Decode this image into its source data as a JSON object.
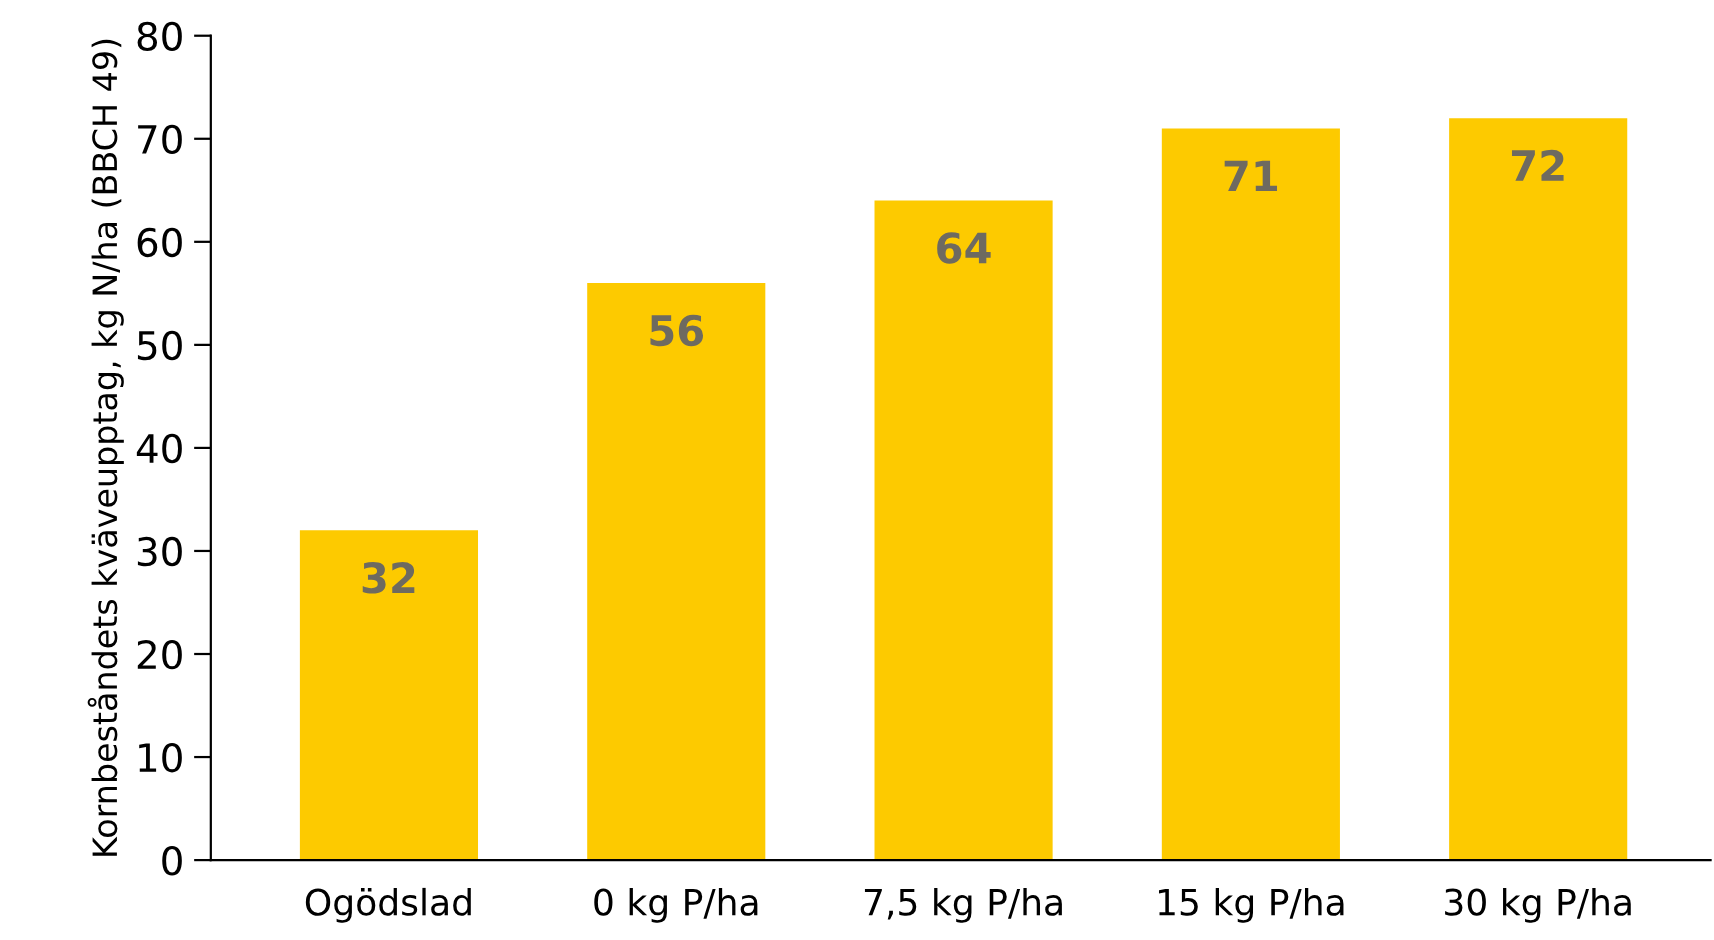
{
  "chart_data": {
    "type": "bar",
    "ylabel": "Kornbeståndets kväveupptag, kg N/ha (BBCH 49)",
    "categories": [
      "Ogödslad",
      "0 kg P/ha",
      "7,5 kg P/ha",
      "15 kg P/ha",
      "30 kg P/ha"
    ],
    "values": [
      32,
      56,
      64,
      71,
      72
    ],
    "color": "#fdca00",
    "ylim": [
      0,
      80
    ],
    "yticks": [
      0,
      10,
      20,
      30,
      40,
      50,
      60,
      70,
      80
    ],
    "grid": false,
    "data_labels": true
  }
}
